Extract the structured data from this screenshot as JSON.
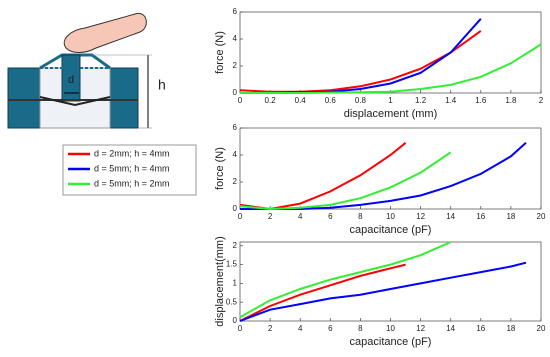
{
  "diagram": {
    "width_label": "d",
    "height_label": "h"
  },
  "legend": [
    {
      "name": "d = 2mm; h = 4mm",
      "color": "#ff0000"
    },
    {
      "name": "d = 5mm; h = 4mm",
      "color": "#0000ff"
    },
    {
      "name": "d = 5mm; h = 2mm",
      "color": "#33ee33"
    }
  ],
  "chart_data": [
    {
      "type": "line",
      "x_label": "displacement (mm)",
      "y_label": "force (N)",
      "xlim": [
        0,
        2
      ],
      "xticks": [
        0,
        0.2,
        0.4,
        0.6,
        0.8,
        1,
        1.2,
        1.4,
        1.6,
        1.8,
        2
      ],
      "ylim": [
        0,
        6
      ],
      "yticks": [
        0,
        2,
        4,
        6
      ],
      "series": [
        {
          "color": "#ff0000",
          "x": [
            0,
            0.2,
            0.4,
            0.6,
            0.8,
            1.0,
            1.2,
            1.4,
            1.6
          ],
          "values": [
            0.2,
            0.1,
            0.1,
            0.2,
            0.5,
            1.0,
            1.8,
            3.0,
            4.6
          ]
        },
        {
          "color": "#0000ff",
          "x": [
            0,
            0.2,
            0.4,
            0.6,
            0.8,
            1.0,
            1.2,
            1.4,
            1.6
          ],
          "values": [
            0,
            0,
            0.05,
            0.1,
            0.3,
            0.7,
            1.5,
            3.0,
            5.5
          ]
        },
        {
          "color": "#33ee33",
          "x": [
            0,
            0.4,
            0.8,
            1.0,
            1.2,
            1.4,
            1.6,
            1.8,
            2.0
          ],
          "values": [
            0,
            0,
            0.05,
            0.1,
            0.3,
            0.6,
            1.2,
            2.2,
            3.6
          ]
        }
      ]
    },
    {
      "type": "line",
      "x_label": "capacitance (pF)",
      "y_label": "force (N)",
      "xlim": [
        0,
        20
      ],
      "xticks": [
        0,
        2,
        4,
        6,
        8,
        10,
        12,
        14,
        16,
        18,
        20
      ],
      "ylim": [
        0,
        6
      ],
      "yticks": [
        0,
        2,
        4,
        6
      ],
      "series": [
        {
          "color": "#ff0000",
          "x": [
            0,
            2,
            4,
            6,
            8,
            10,
            11
          ],
          "values": [
            0.3,
            0,
            0.4,
            1.3,
            2.5,
            4.0,
            4.9
          ]
        },
        {
          "color": "#0000ff",
          "x": [
            0,
            2,
            4,
            6,
            8,
            10,
            12,
            14,
            16,
            18,
            19
          ],
          "values": [
            0,
            0,
            0,
            0.1,
            0.3,
            0.6,
            1.0,
            1.7,
            2.6,
            3.9,
            4.9
          ]
        },
        {
          "color": "#33ee33",
          "x": [
            0,
            2,
            4,
            6,
            8,
            10,
            12,
            14
          ],
          "values": [
            0.2,
            0,
            0.1,
            0.3,
            0.8,
            1.6,
            2.7,
            4.2
          ]
        }
      ]
    },
    {
      "type": "line",
      "x_label": "capacitance (pF)",
      "y_label": "displacement(mm)",
      "xlim": [
        0,
        20
      ],
      "xticks": [
        0,
        2,
        4,
        6,
        8,
        10,
        12,
        14,
        16,
        18,
        20
      ],
      "ylim": [
        0,
        2.1
      ],
      "yticks": [
        0,
        0.5,
        1,
        1.5,
        2
      ],
      "series": [
        {
          "color": "#ff0000",
          "x": [
            0,
            2,
            4,
            6,
            8,
            10,
            11
          ],
          "values": [
            0,
            0.4,
            0.7,
            0.95,
            1.2,
            1.4,
            1.5
          ]
        },
        {
          "color": "#0000ff",
          "x": [
            0,
            2,
            4,
            6,
            8,
            10,
            12,
            14,
            16,
            18,
            19
          ],
          "values": [
            0,
            0.3,
            0.45,
            0.6,
            0.7,
            0.85,
            1.0,
            1.15,
            1.3,
            1.45,
            1.55
          ]
        },
        {
          "color": "#33ee33",
          "x": [
            0,
            2,
            4,
            6,
            8,
            10,
            12,
            14
          ],
          "values": [
            0.1,
            0.55,
            0.85,
            1.1,
            1.3,
            1.5,
            1.75,
            2.1
          ]
        }
      ]
    }
  ]
}
